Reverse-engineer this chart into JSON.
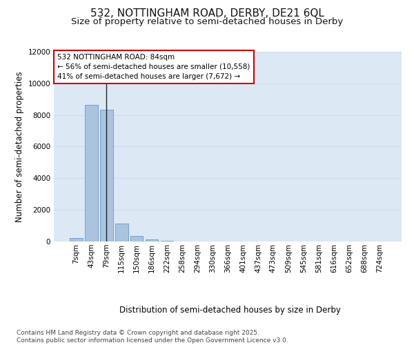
{
  "title_line1": "532, NOTTINGHAM ROAD, DERBY, DE21 6QL",
  "title_line2": "Size of property relative to semi-detached houses in Derby",
  "xlabel": "Distribution of semi-detached houses by size in Derby",
  "ylabel": "Number of semi-detached properties",
  "categories": [
    "7sqm",
    "43sqm",
    "79sqm",
    "115sqm",
    "150sqm",
    "186sqm",
    "222sqm",
    "258sqm",
    "294sqm",
    "330sqm",
    "366sqm",
    "401sqm",
    "437sqm",
    "473sqm",
    "509sqm",
    "545sqm",
    "581sqm",
    "616sqm",
    "652sqm",
    "688sqm",
    "724sqm"
  ],
  "values": [
    220,
    8650,
    8350,
    1150,
    330,
    120,
    50,
    0,
    0,
    0,
    0,
    0,
    0,
    0,
    0,
    0,
    0,
    0,
    0,
    0,
    0
  ],
  "bar_color": "#aac4e0",
  "bar_edge_color": "#6699cc",
  "vline_x_index": 2,
  "vline_color": "#222222",
  "annotation_text": "532 NOTTINGHAM ROAD: 84sqm\n← 56% of semi-detached houses are smaller (10,558)\n41% of semi-detached houses are larger (7,672) →",
  "annotation_box_color": "#ffffff",
  "annotation_box_edge": "#cc0000",
  "ylim": [
    0,
    12000
  ],
  "yticks": [
    0,
    2000,
    4000,
    6000,
    8000,
    10000,
    12000
  ],
  "grid_color": "#ccddee",
  "background_color": "#dce8f4",
  "footnote": "Contains HM Land Registry data © Crown copyright and database right 2025.\nContains public sector information licensed under the Open Government Licence v3.0.",
  "title_fontsize": 11,
  "subtitle_fontsize": 9.5,
  "axis_label_fontsize": 8.5,
  "tick_fontsize": 7.5,
  "annotation_fontsize": 7.5,
  "footnote_fontsize": 6.5
}
